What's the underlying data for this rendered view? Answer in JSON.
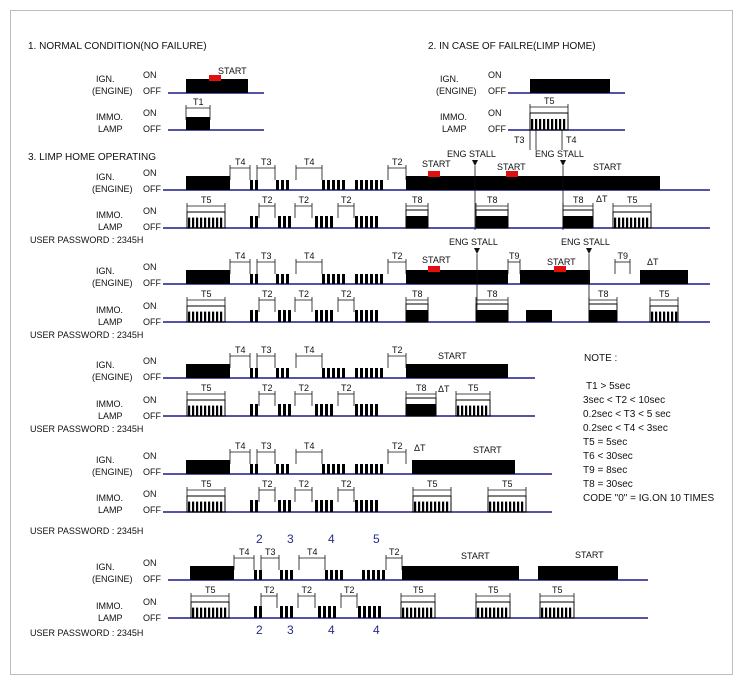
{
  "sections": {
    "normal": "1. NORMAL CONDITION(NO FAILURE)",
    "limp_home": "2. IN CASE OF FAILRE(LIMP HOME)",
    "limp_operating": "3. LIMP HOME OPERATING"
  },
  "labels": {
    "ign": "IGN.",
    "engine": "(ENGINE)",
    "immo": "IMMO.",
    "lamp": "LAMP",
    "on": "ON",
    "off": "OFF",
    "start": "START",
    "eng_stall": "ENG STALL",
    "delta_t": "ΔT",
    "password": "USER PASSWORD : 2345H"
  },
  "timing": {
    "t1": "T1",
    "t2": "T2",
    "t3": "T3",
    "t4": "T4",
    "t5": "T5",
    "t8": "T8",
    "t9": "T9"
  },
  "digits_top": [
    "2",
    "3",
    "4",
    "5"
  ],
  "digits_bottom": [
    "2",
    "3",
    "4",
    "4"
  ],
  "note": {
    "title": "NOTE :",
    "lines": [
      "T1 > 5sec",
      "3sec < T2 < 10sec",
      "0.2sec < T3 < 5 sec",
      "0.2sec < T4 < 3sec",
      "T5 = 5sec",
      "T6 < 30sec",
      "T9 = 8sec",
      "T8 = 30sec",
      "CODE \"0\" = IG.ON 10 TIMES"
    ]
  },
  "colors": {
    "signal": "#000000",
    "baseline": "#1a1a8c",
    "start_marker": "#e01010",
    "digit": "#2a2a8a",
    "frame": "#bdbdbd"
  }
}
